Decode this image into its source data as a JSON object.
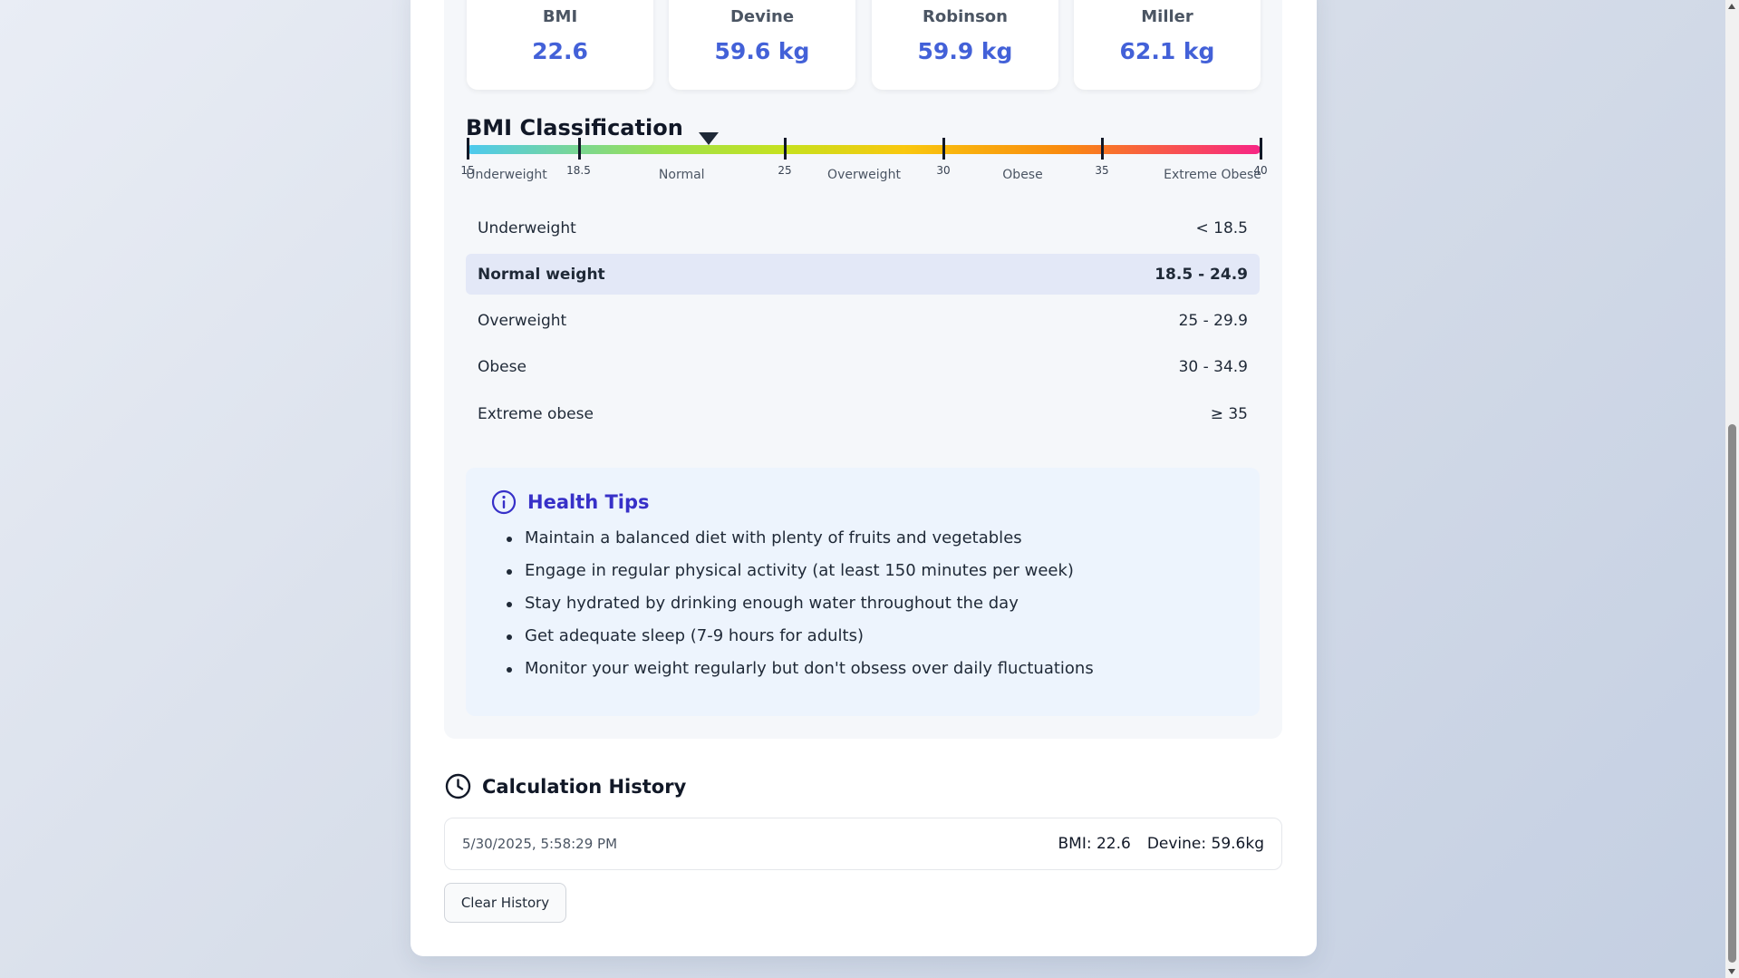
{
  "stats": [
    {
      "label": "BMI",
      "value": "22.6"
    },
    {
      "label": "Devine",
      "value": "59.6 kg"
    },
    {
      "label": "Robinson",
      "value": "59.9 kg"
    },
    {
      "label": "Miller",
      "value": "62.1 kg"
    }
  ],
  "classification": {
    "title": "BMI Classification",
    "scale_min": 15,
    "scale_max": 40,
    "current_bmi": 22.6,
    "ticks": [
      "15",
      "18.5",
      "25",
      "30",
      "35",
      "40"
    ],
    "zones": [
      "Underweight",
      "Normal",
      "Overweight",
      "Obese",
      "Extreme Obese"
    ],
    "rows": [
      {
        "name": "Underweight",
        "range": "< 18.5"
      },
      {
        "name": "Normal weight",
        "range": "18.5 - 24.9"
      },
      {
        "name": "Overweight",
        "range": "25 - 29.9"
      },
      {
        "name": "Obese",
        "range": "30 - 34.9"
      },
      {
        "name": "Extreme obese",
        "range": "≥ 35"
      }
    ],
    "active_row": "Normal weight"
  },
  "tips": {
    "title": "Health Tips",
    "items": [
      "Maintain a balanced diet with plenty of fruits and vegetables",
      "Engage in regular physical activity (at least 150 minutes per week)",
      "Stay hydrated by drinking enough water throughout the day",
      "Get adequate sleep (7-9 hours for adults)",
      "Monitor your weight regularly but don't obsess over daily fluctuations"
    ]
  },
  "history": {
    "title": "Calculation History",
    "entries": [
      {
        "date": "5/30/2025, 5:58:29 PM",
        "bmi": "BMI: 22.6",
        "devine": "Devine: 59.6kg"
      }
    ],
    "clear_label": "Clear History"
  },
  "colors": {
    "accent": "#4361d8",
    "tips_title": "#3730c8",
    "active_row_bg": "#e3e8f7"
  }
}
